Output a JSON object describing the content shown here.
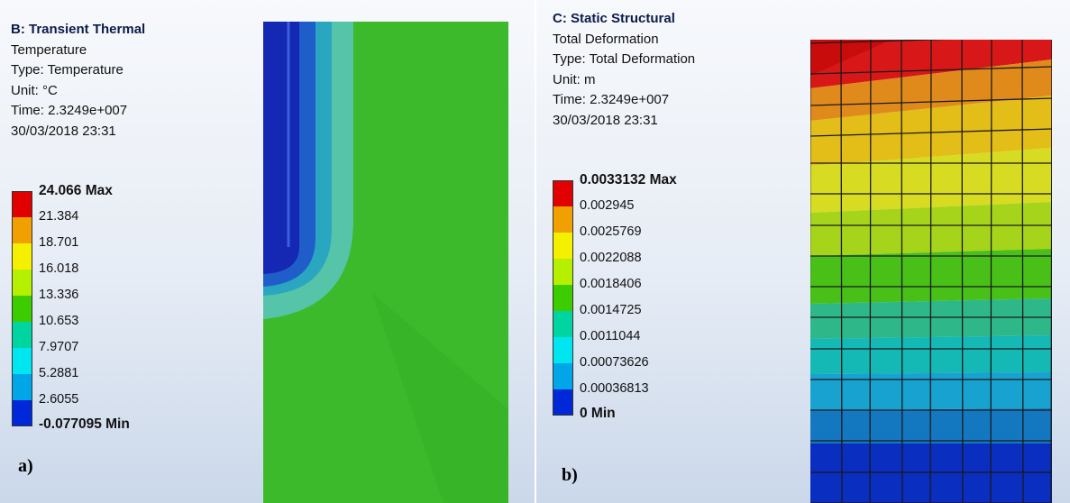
{
  "panels": {
    "a": {
      "title": "B: Transient Thermal",
      "result": "Temperature",
      "type": "Type: Temperature",
      "unit": "Unit: °C",
      "time": "Time: 2.3249e+007",
      "date": "30/03/2018 23:31",
      "legend": {
        "colors": [
          "#e00000",
          "#f0a000",
          "#f5f000",
          "#b4f000",
          "#3ccc00",
          "#00d4a0",
          "#00e6f0",
          "#00a6e8",
          "#0028d8"
        ],
        "labels": [
          "24.066 Max",
          "21.384",
          "18.701",
          "16.018",
          "13.336",
          "10.653",
          "7.9707",
          "5.2881",
          "2.6055"
        ],
        "min_label": "-0.077095 Min"
      },
      "caption": "a)"
    },
    "b": {
      "title": "C: Static Structural",
      "result": "Total Deformation",
      "type": "Type: Total Deformation",
      "unit": "Unit: m",
      "time": "Time: 2.3249e+007",
      "date": "30/03/2018 23:31",
      "legend": {
        "colors": [
          "#e00000",
          "#f0a000",
          "#f5f000",
          "#b4f000",
          "#3ccc00",
          "#00d4a0",
          "#00e6f0",
          "#00a6e8",
          "#0028d8"
        ],
        "labels": [
          "0.0033132 Max",
          "0.002945",
          "0.0025769",
          "0.0022088",
          "0.0018406",
          "0.0014725",
          "0.0011044",
          "0.00073626",
          "0.00036813"
        ],
        "min_label": "0 Min"
      },
      "caption": "b)"
    }
  }
}
